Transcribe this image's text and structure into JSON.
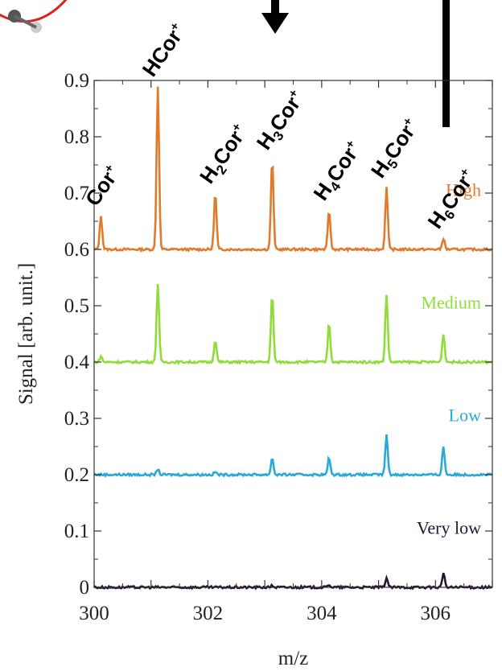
{
  "chart_data": {
    "type": "line",
    "xlabel": "m/z",
    "ylabel": "Signal [arb. unit.]",
    "xlim": [
      300,
      307
    ],
    "ylim": [
      0,
      0.9
    ],
    "xticks": [
      "300",
      "302",
      "304",
      "306"
    ],
    "yticks": [
      "0",
      "0.1",
      "0.2",
      "0.3",
      "0.4",
      "0.5",
      "0.6",
      "0.7",
      "0.8",
      "0.9"
    ],
    "grid": false,
    "legend": "inline labels at right of each trace",
    "peak_positions": [
      300.12,
      301.12,
      302.13,
      303.13,
      304.13,
      305.14,
      306.14
    ],
    "peak_labels": [
      {
        "main": "Cor",
        "sub": "",
        "sup": "+"
      },
      {
        "main": "HCor",
        "sub": "",
        "sup": "+"
      },
      {
        "main": "H",
        "sub": "2",
        "main2": "Cor",
        "sup": "+"
      },
      {
        "main": "H",
        "sub": "3",
        "main2": "Cor",
        "sup": "+"
      },
      {
        "main": "H",
        "sub": "4",
        "main2": "Cor",
        "sup": "+"
      },
      {
        "main": "H",
        "sub": "5",
        "main2": "Cor",
        "sup": "+"
      },
      {
        "main": "H",
        "sub": "6",
        "main2": "Cor",
        "sup": "+"
      }
    ],
    "series": [
      {
        "name": "High",
        "color": "#e07b2e",
        "baseline": 0.6,
        "peaks": [
          0.66,
          0.89,
          0.7,
          0.76,
          0.67,
          0.71,
          0.62
        ]
      },
      {
        "name": "Medium",
        "color": "#8fdc3a",
        "baseline": 0.4,
        "peaks": [
          0.41,
          0.54,
          0.44,
          0.52,
          0.47,
          0.52,
          0.45
        ]
      },
      {
        "name": "Low",
        "color": "#2aa9d6",
        "baseline": 0.2,
        "peaks": [
          0.2,
          0.21,
          0.205,
          0.23,
          0.23,
          0.27,
          0.25
        ]
      },
      {
        "name": "Very low",
        "color": "#2a1236",
        "baseline": 0.0,
        "peaks": [
          0.0,
          0.0,
          0.0,
          0.003,
          0.005,
          0.017,
          0.025
        ]
      }
    ]
  },
  "decor": {
    "molecule_icon": "molecule-icon",
    "arrow_color": "#000000",
    "molecule_ring_color": "#e02020"
  }
}
